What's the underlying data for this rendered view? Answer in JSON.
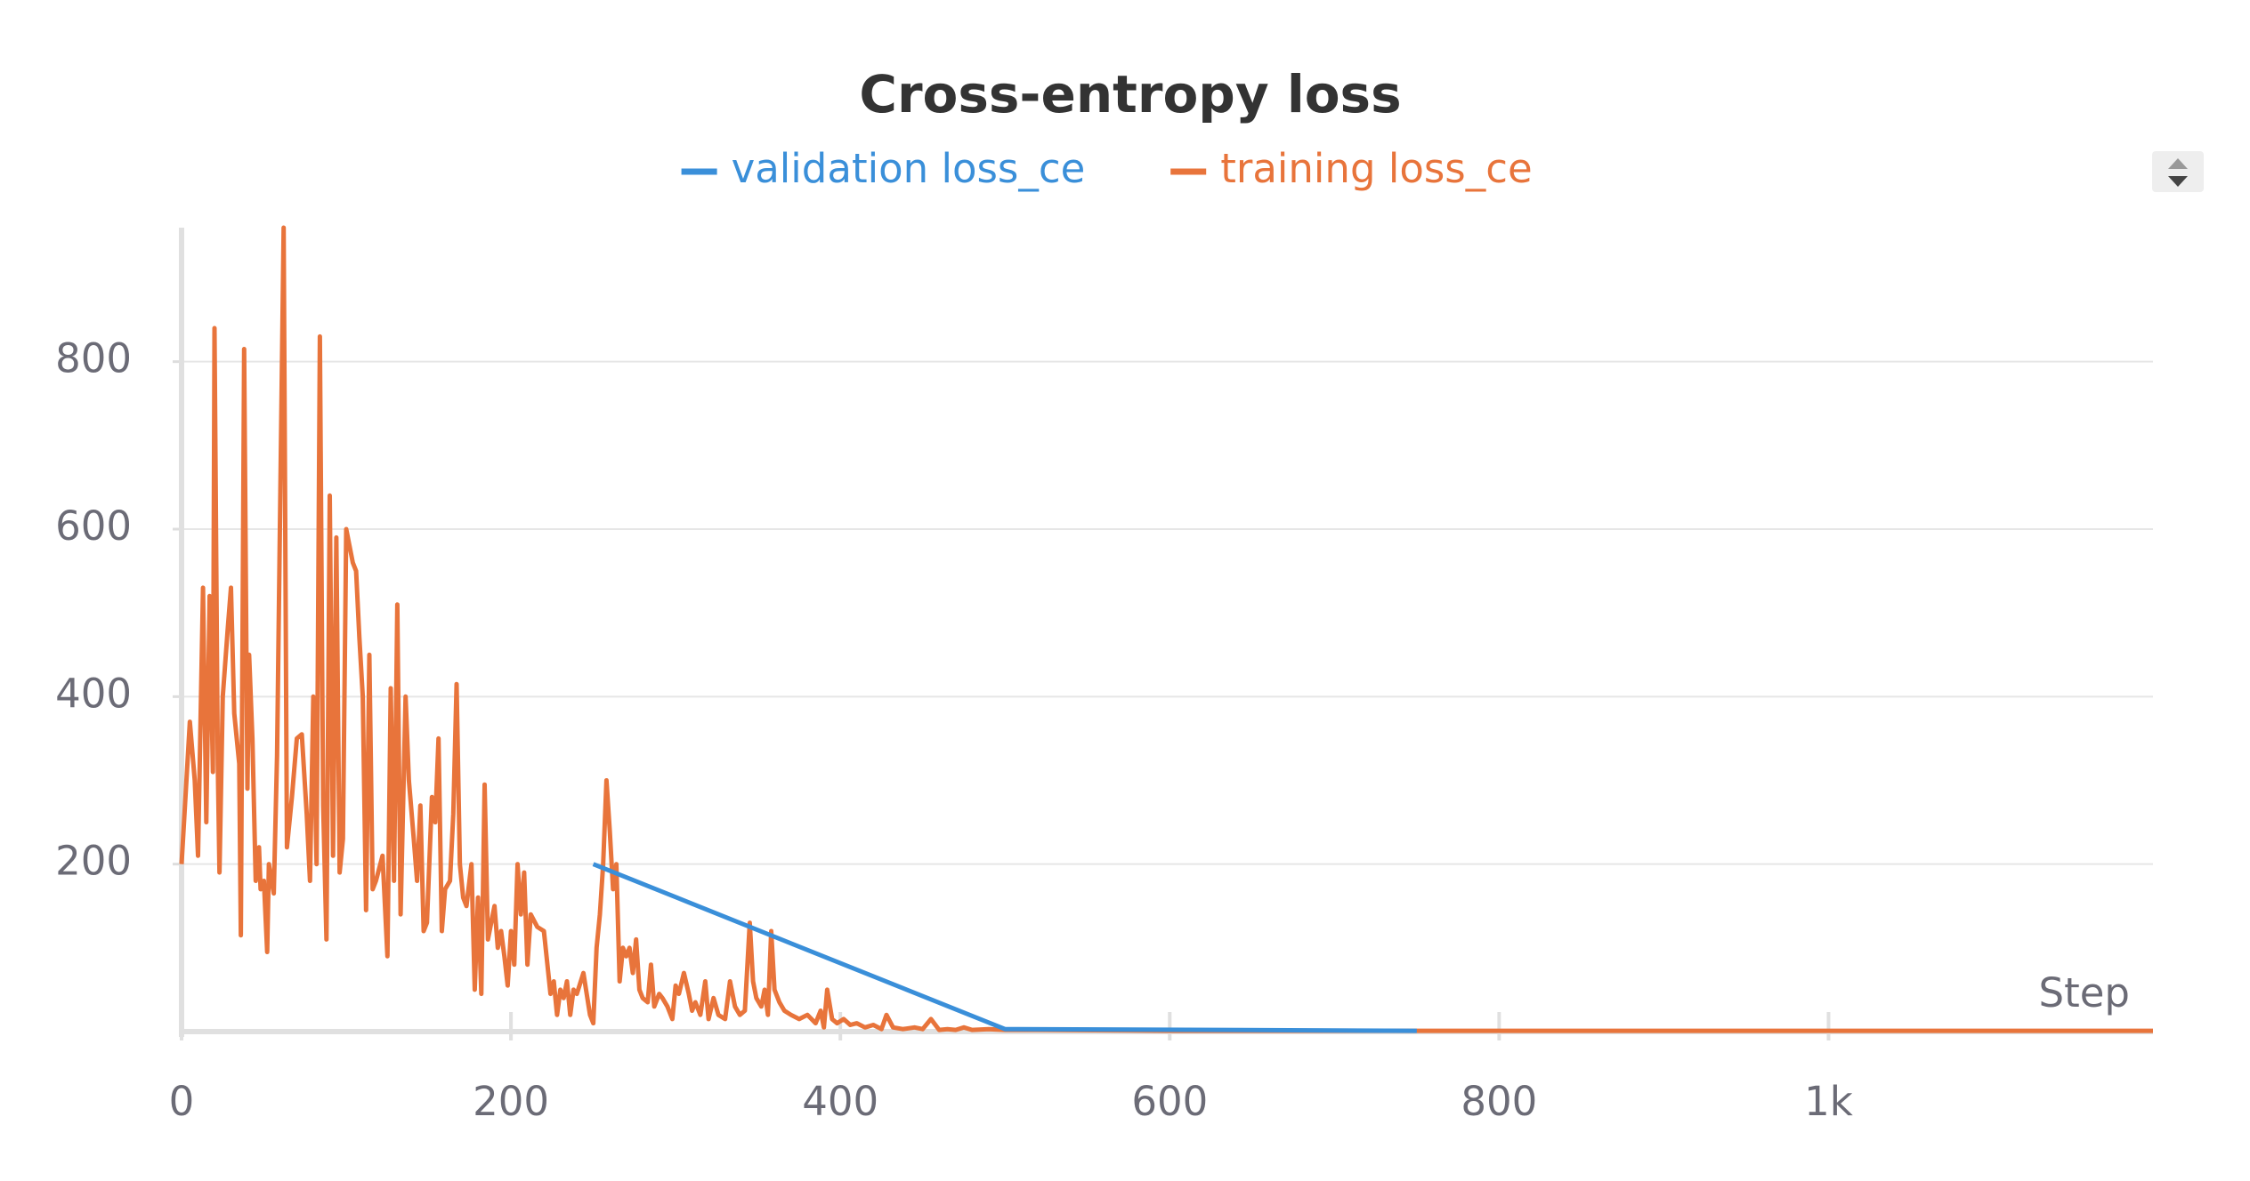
{
  "chart_data": {
    "type": "line",
    "title": "Cross-entropy loss",
    "xlabel": "Step",
    "series": [
      {
        "name": "validation loss_ce",
        "color": "#3a8fd9",
        "x": [
          250,
          500,
          750
        ],
        "values": [
          200,
          3,
          1
        ]
      },
      {
        "name": "training loss_ce",
        "color": "#e8743b",
        "x": [
          0,
          5,
          8,
          10,
          13,
          15,
          17,
          19,
          20,
          22,
          23,
          25,
          28,
          30,
          32,
          35,
          36,
          38,
          40,
          41,
          43,
          45,
          47,
          48,
          50,
          52,
          53,
          56,
          58,
          62,
          64,
          67,
          70,
          73,
          76,
          78,
          80,
          82,
          84,
          86,
          88,
          90,
          92,
          94,
          96,
          98,
          100,
          102,
          104,
          106,
          108,
          110,
          112,
          114,
          116,
          118,
          122,
          125,
          127,
          129,
          131,
          133,
          136,
          138,
          141,
          143,
          145,
          147,
          149,
          152,
          154,
          156,
          158,
          160,
          163,
          165,
          167,
          169,
          171,
          173,
          176,
          178,
          180,
          182,
          184,
          186,
          188,
          190,
          192,
          194,
          196,
          198,
          200,
          202,
          204,
          206,
          208,
          210,
          212,
          216,
          220,
          224,
          226,
          228,
          230,
          232,
          234,
          236,
          238,
          240,
          244,
          248,
          250,
          252,
          254,
          256,
          258,
          260,
          262,
          264,
          266,
          268,
          270,
          272,
          274,
          276,
          278,
          280,
          283,
          285,
          287,
          290,
          292,
          295,
          298,
          300,
          302,
          305,
          308,
          310,
          312,
          315,
          318,
          320,
          323,
          326,
          330,
          333,
          336,
          339,
          342,
          345,
          347,
          349,
          352,
          354,
          356,
          358,
          360,
          363,
          366,
          370,
          375,
          380,
          385,
          388,
          390,
          392,
          395,
          398,
          402,
          406,
          410,
          415,
          420,
          425,
          428,
          432,
          438,
          445,
          450,
          455,
          460,
          465,
          470,
          475,
          480,
          490,
          500,
          520,
          600,
          800,
          1000,
          1197
        ],
        "values": [
          200,
          370,
          300,
          210,
          530,
          250,
          520,
          310,
          840,
          320,
          190,
          400,
          480,
          530,
          380,
          320,
          115,
          815,
          290,
          450,
          350,
          180,
          220,
          170,
          180,
          95,
          200,
          165,
          330,
          960,
          220,
          280,
          350,
          355,
          260,
          180,
          400,
          200,
          830,
          270,
          110,
          640,
          210,
          590,
          190,
          230,
          600,
          580,
          560,
          550,
          470,
          400,
          145,
          450,
          170,
          180,
          210,
          90,
          410,
          180,
          510,
          140,
          400,
          300,
          230,
          180,
          270,
          120,
          130,
          280,
          250,
          350,
          120,
          170,
          180,
          260,
          415,
          200,
          160,
          150,
          200,
          50,
          160,
          45,
          295,
          110,
          130,
          150,
          100,
          120,
          90,
          55,
          120,
          80,
          200,
          140,
          190,
          80,
          140,
          125,
          120,
          45,
          60,
          20,
          50,
          40,
          60,
          20,
          50,
          45,
          70,
          20,
          10,
          100,
          140,
          200,
          300,
          240,
          170,
          200,
          60,
          100,
          90,
          100,
          70,
          110,
          50,
          40,
          35,
          80,
          30,
          45,
          40,
          30,
          15,
          55,
          45,
          70,
          45,
          25,
          35,
          20,
          60,
          15,
          40,
          20,
          15,
          60,
          30,
          20,
          25,
          130,
          60,
          40,
          30,
          50,
          20,
          120,
          50,
          35,
          25,
          20,
          15,
          20,
          10,
          25,
          5,
          50,
          15,
          10,
          15,
          8,
          10,
          5,
          8,
          3,
          20,
          5,
          3,
          5,
          3,
          15,
          2,
          3,
          2,
          5,
          2,
          3,
          2,
          2,
          1,
          1,
          1,
          1
        ]
      }
    ],
    "xlim": [
      0,
      1197
    ],
    "ylim": [
      0,
      960
    ],
    "xticks": [
      0,
      200,
      400,
      600,
      800,
      {
        "value": 1000,
        "label": "1k"
      }
    ],
    "yticks": [
      200,
      400,
      600,
      800
    ],
    "grid": true,
    "legend": "top"
  }
}
